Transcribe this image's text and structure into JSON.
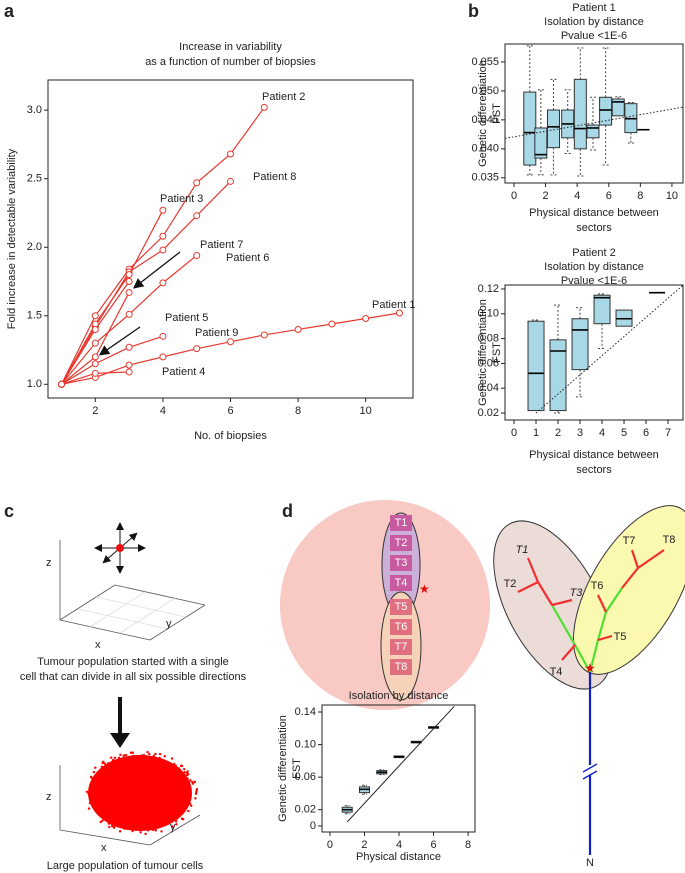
{
  "panel_labels": [
    "a",
    "b",
    "c",
    "d"
  ],
  "chart_data": [
    {
      "type": "line",
      "title": [
        "Increase in variability",
        "as a function of number of biopsies"
      ],
      "xlabel": "No. of biopsies",
      "ylabel": "Fold increase in detectable variability",
      "color": "#e8372e",
      "xlim": [
        0.6,
        11.4
      ],
      "ylim": [
        0.9,
        3.22
      ],
      "xticks": [
        2,
        4,
        6,
        8,
        10
      ],
      "yticks": [
        {
          "value": 1,
          "label": "1.0"
        },
        1.5,
        {
          "value": 2,
          "label": "2.0"
        },
        2.5,
        {
          "value": 3,
          "label": "3.0"
        }
      ],
      "series": [
        {
          "name": "Patient 1",
          "x": [
            1,
            2,
            3,
            4,
            5,
            6,
            7,
            8,
            9,
            10,
            11
          ],
          "values": [
            1.0,
            1.05,
            1.14,
            1.2,
            1.26,
            1.31,
            1.36,
            1.4,
            1.44,
            1.48,
            1.52
          ]
        },
        {
          "name": "Patient 2",
          "x": [
            1,
            2,
            3,
            4,
            5,
            6,
            7
          ],
          "values": [
            1.0,
            1.5,
            1.84,
            2.08,
            2.47,
            2.68,
            3.02
          ]
        },
        {
          "name": "Patient 8",
          "x": [
            1,
            2,
            3,
            4,
            5,
            6
          ],
          "values": [
            1.0,
            1.42,
            1.82,
            1.98,
            2.23,
            2.48
          ]
        },
        {
          "name": "Patient 3",
          "x": [
            1,
            2,
            3,
            4
          ],
          "values": [
            1.0,
            1.44,
            1.8,
            2.27
          ]
        },
        {
          "name": "Patient 7",
          "x": [
            1,
            2,
            3
          ],
          "values": [
            1.0,
            1.4,
            1.75
          ]
        },
        {
          "name": "Patient 6",
          "x": [
            1,
            2,
            3,
            4,
            5
          ],
          "values": [
            1.0,
            1.3,
            1.51,
            1.74,
            1.94
          ]
        },
        {
          "name": "Patient 5",
          "x": [
            1,
            2,
            3
          ],
          "values": [
            1.0,
            1.2,
            1.67
          ]
        },
        {
          "name": "Patient 9",
          "x": [
            1,
            2,
            3,
            4
          ],
          "values": [
            1.0,
            1.15,
            1.27,
            1.35
          ]
        },
        {
          "name": "Patient 4",
          "x": [
            1,
            2,
            3
          ],
          "values": [
            1.0,
            1.08,
            1.09
          ]
        }
      ]
    },
    {
      "type": "box",
      "title": [
        "Patient 1",
        "Isolation by distance",
        "Pvalue <1E-6"
      ],
      "xlabel": [
        "Physical distance between",
        "sectors"
      ],
      "ylabel": [
        "Genetic differentiation",
        "FST"
      ],
      "color": "#a8d8e6",
      "xlim": [
        -0.57,
        10.7
      ],
      "ylim": [
        0.0341,
        0.0581
      ],
      "xticks": [
        0,
        2,
        4,
        6,
        8,
        10
      ],
      "yticks": [
        0.035,
        {
          "value": 0.04,
          "label": "0.040"
        },
        0.045,
        {
          "value": 0.05,
          "label": "0.050"
        },
        0.055
      ],
      "x": [
        1.0,
        1.7,
        2.5,
        3.4,
        4.2,
        5.0,
        5.8,
        6.6,
        7.4,
        8.2
      ],
      "q1": [
        0.0372,
        0.0384,
        0.0402,
        0.0419,
        0.04,
        0.0419,
        0.0441,
        0.0457,
        0.0428,
        0.0433
      ],
      "median": [
        0.0428,
        0.039,
        0.0438,
        0.0443,
        0.0435,
        0.0436,
        0.0467,
        0.0481,
        0.0452,
        0.0433
      ],
      "q3": [
        0.0498,
        0.0436,
        0.0467,
        0.0467,
        0.052,
        0.0441,
        0.0489,
        0.0486,
        0.0478,
        0.0433
      ],
      "whisker_low": [
        0.0355,
        0.0355,
        0.0355,
        0.0392,
        0.0353,
        0.0398,
        0.0372,
        0.0457,
        0.041,
        0.0433
      ],
      "whisker_high": [
        0.0578,
        0.0502,
        0.052,
        0.0502,
        0.0574,
        0.0489,
        0.0574,
        0.049,
        0.048,
        0.0433
      ],
      "fit": {
        "x": [
          -0.57,
          10.7
        ],
        "values": [
          0.0418,
          0.0472
        ]
      }
    },
    {
      "type": "box",
      "title": [
        "Patient 2",
        "Isolation by distance",
        "Pvalue <1E-6"
      ],
      "xlabel": [
        "Physical distance between",
        "sectors"
      ],
      "ylabel": [
        "Genetic differentiation",
        "FST"
      ],
      "color": "#a8d8e6",
      "xlim": [
        -0.41,
        7.68
      ],
      "ylim": [
        0.0144,
        0.1232
      ],
      "xticks": [
        0,
        1,
        2,
        3,
        4,
        5,
        6,
        7
      ],
      "yticks": [
        0.02,
        0.04,
        0.06,
        0.08,
        {
          "value": 0.1,
          "label": "0.10"
        },
        0.12
      ],
      "x": [
        1,
        2,
        3,
        4,
        5,
        6.5
      ],
      "q1": [
        0.022,
        0.022,
        0.055,
        0.092,
        0.09,
        0.117
      ],
      "median": [
        0.052,
        0.07,
        0.087,
        0.113,
        0.096,
        0.117
      ],
      "q3": [
        0.094,
        0.079,
        0.096,
        0.115,
        0.103,
        0.117
      ],
      "whisker_low": [
        0.022,
        0.02,
        0.033,
        0.072,
        0.09,
        0.117
      ],
      "whisker_high": [
        0.095,
        0.107,
        0.105,
        0.116,
        0.103,
        0.117
      ],
      "fit": {
        "x": [
          1,
          7.68
        ],
        "values": [
          0.02,
          0.123
        ]
      }
    },
    {
      "type": "box",
      "title": [
        "Isolation by distance"
      ],
      "xlabel": [
        "Physical distance"
      ],
      "ylabel": [
        "Genetic differentiation",
        "FST"
      ],
      "color": "#a8d8e6",
      "xlim": [
        -0.46,
        8.4
      ],
      "ylim": [
        -0.0074,
        0.1486
      ],
      "xticks": [
        0,
        2,
        4,
        6,
        8
      ],
      "yticks": [
        0,
        0.02,
        0.06,
        {
          "value": 0.1,
          "label": "0.10"
        },
        0.14
      ],
      "x": [
        1,
        2,
        3,
        4,
        5,
        6
      ],
      "q1": [
        0.017,
        0.041,
        0.064,
        0.084,
        0.102,
        0.12
      ],
      "median": [
        0.02,
        0.045,
        0.066,
        0.085,
        0.103,
        0.121
      ],
      "q3": [
        0.023,
        0.048,
        0.068,
        0.086,
        0.104,
        0.122
      ],
      "whisker_low": [
        0.015,
        0.039,
        0.063,
        0.084,
        0.102,
        0.12
      ],
      "whisker_high": [
        0.025,
        0.05,
        0.069,
        0.086,
        0.104,
        0.122
      ],
      "fit": {
        "x": [
          1,
          7.2
        ],
        "values": [
          0.005,
          0.147
        ]
      }
    }
  ],
  "panel_c": {
    "top_axes": [
      "z",
      "y",
      "x"
    ],
    "top_caption": [
      "Tumour population started with a single",
      "cell that can divide in all six possible directions"
    ],
    "bottom_axes": [
      "z",
      "y",
      "x"
    ],
    "bottom_caption": "Large population of tumour cells"
  },
  "panel_d": {
    "sectors": [
      "T1",
      "T2",
      "T3",
      "T4",
      "T5",
      "T6",
      "T7",
      "T8"
    ],
    "tree_leaves": [
      "T1",
      "T2",
      "T3",
      "T4",
      "T5",
      "T6",
      "T7",
      "T8"
    ],
    "root": "N"
  }
}
